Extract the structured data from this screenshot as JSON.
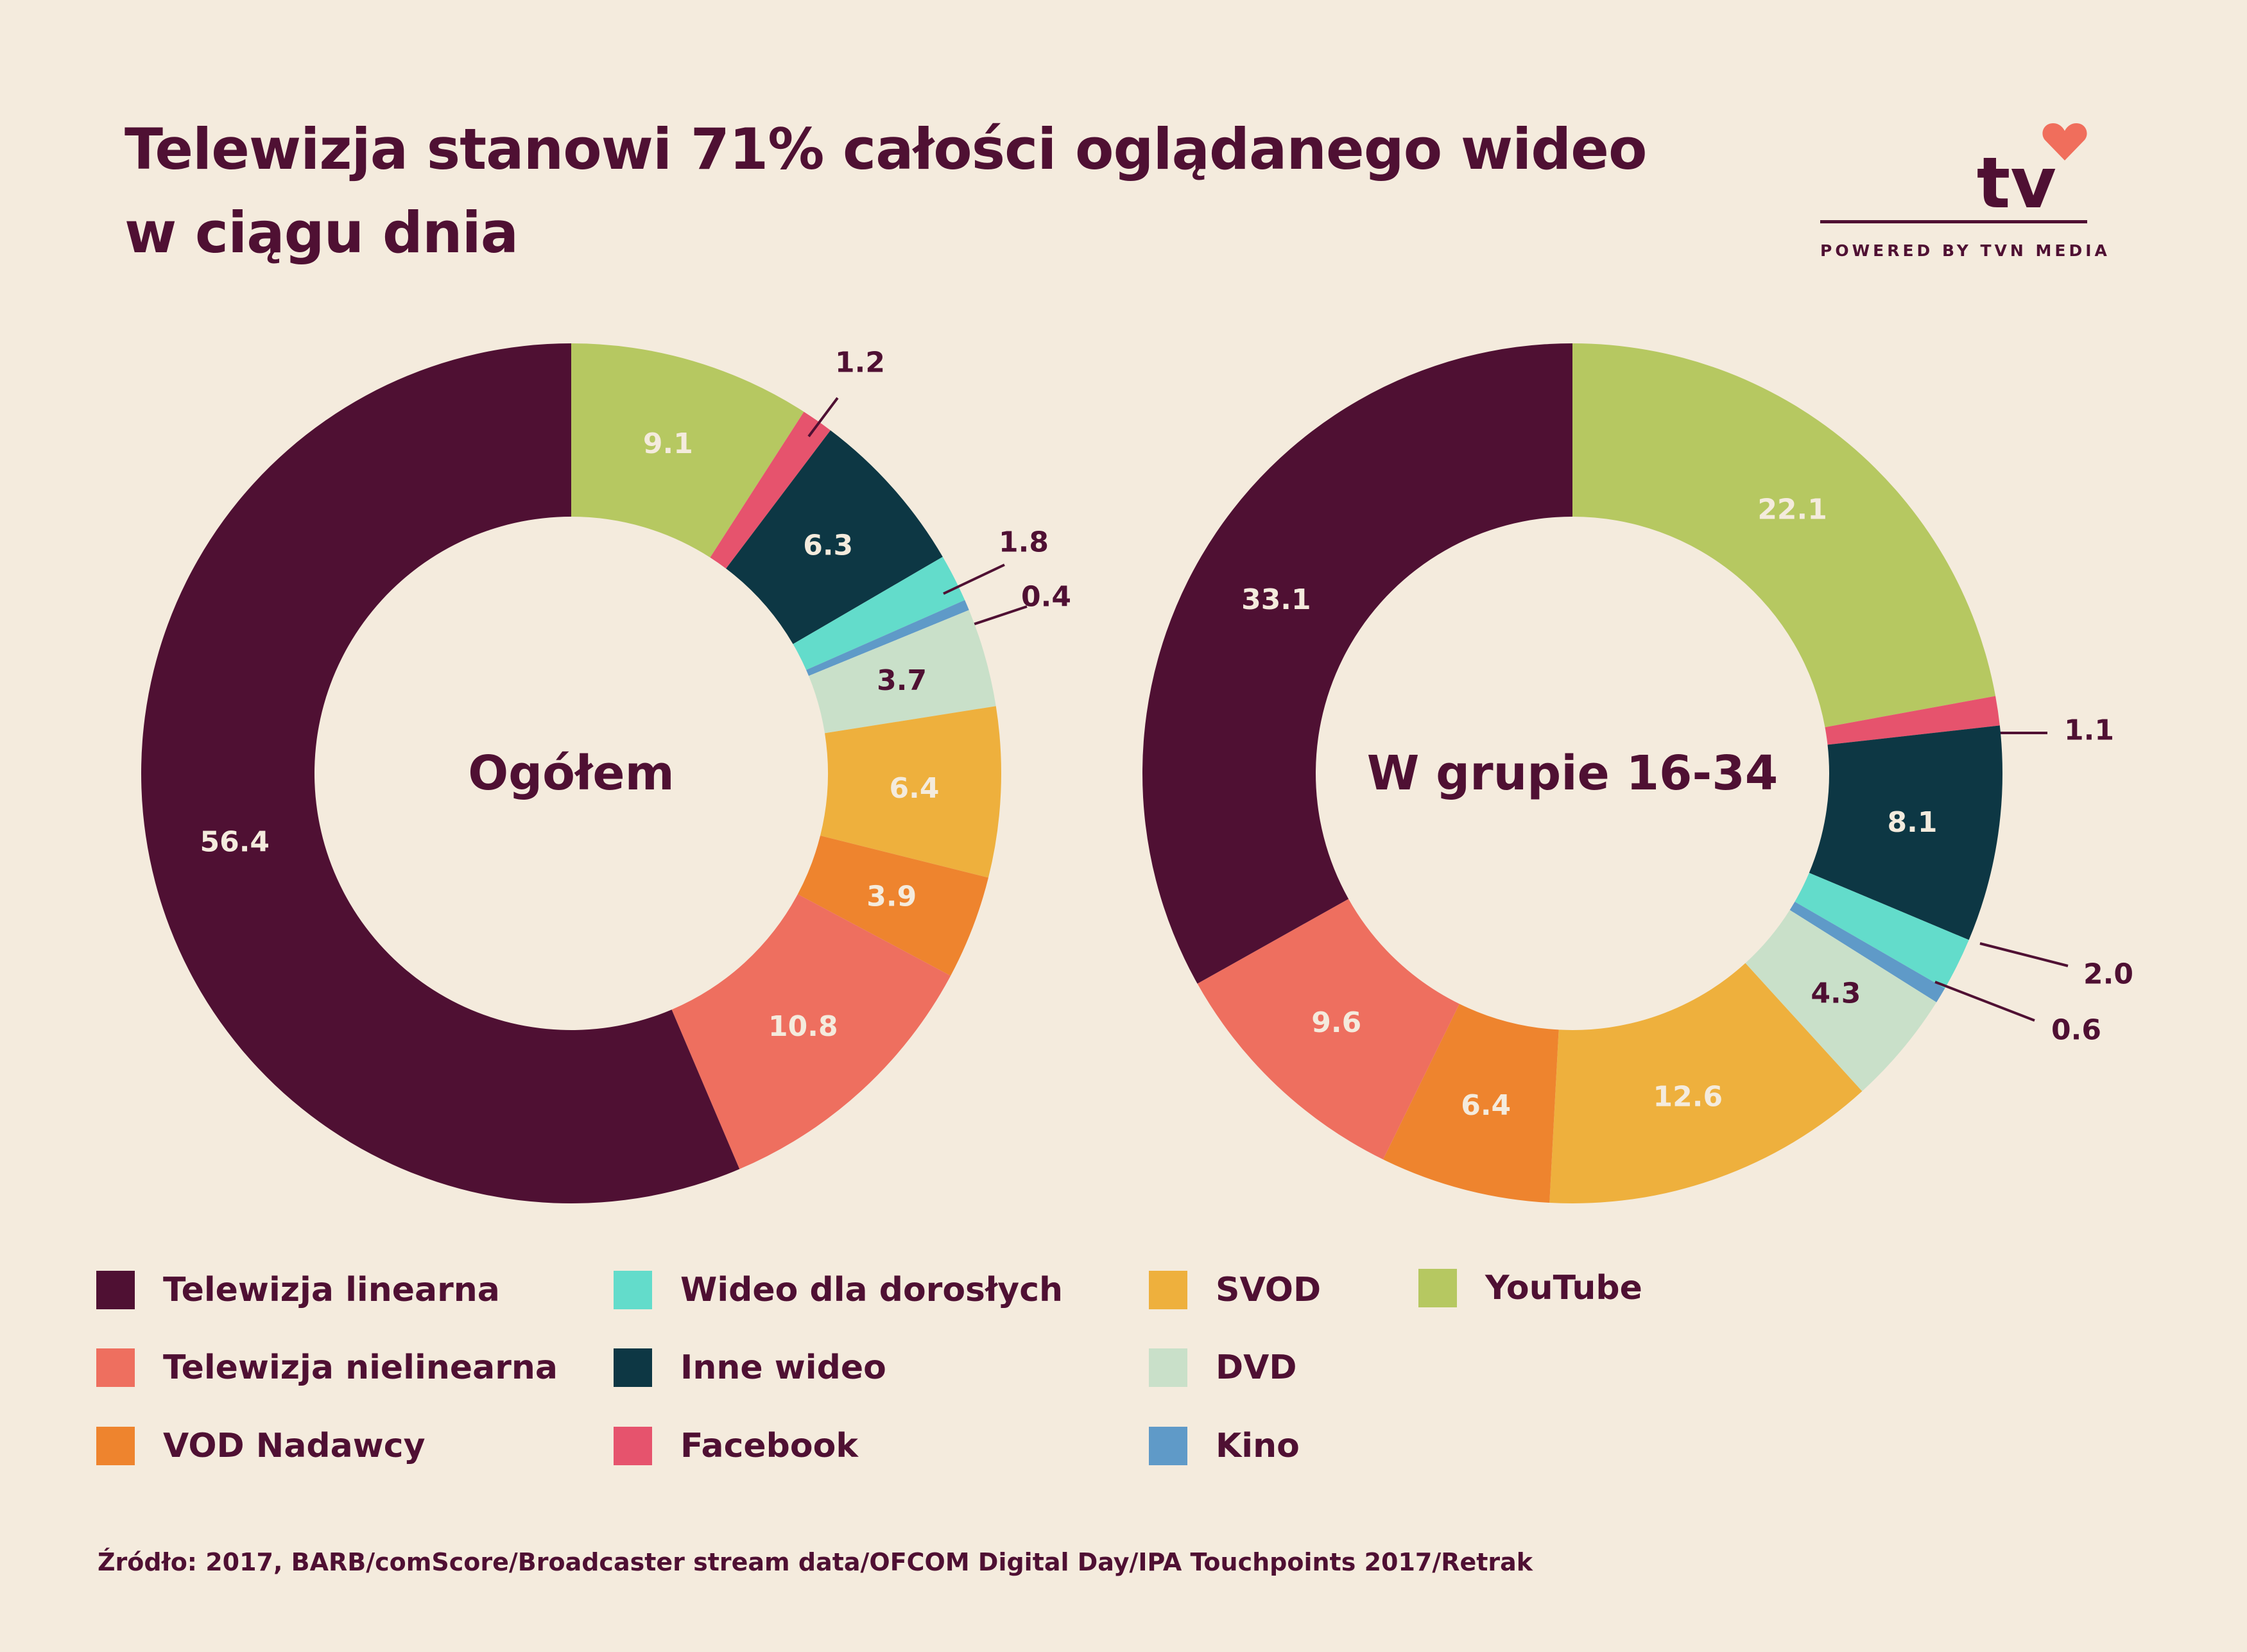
{
  "title_line1": "Telewizja stanowi 71% całości oglądanego wideo",
  "title_line2": "w ciągu dnia",
  "logo": {
    "mark": "tv",
    "tagline": "POWERED BY TVN MEDIA",
    "icon": "heart-icon",
    "accent": "#f06e5c"
  },
  "source": "Źródło: 2017, BARB/comScore/Broadcaster stream data/OFCOM Digital Day/IPA Touchpoints 2017/Retrak",
  "colors": {
    "text": "#4f1033",
    "background": "#f4ebdd"
  },
  "chart_data": [
    {
      "type": "donut",
      "center_label": "Ogółem",
      "slices": [
        {
          "category": "YouTube",
          "value": 9.1,
          "label": "9.1",
          "color": "#b6c861"
        },
        {
          "category": "Facebook",
          "value": 1.2,
          "label": "1.2",
          "color": "#e6536d"
        },
        {
          "category": "Inne wideo",
          "value": 6.3,
          "label": "6.3",
          "color": "#0d3744"
        },
        {
          "category": "Wideo dla dorosłych",
          "value": 1.8,
          "label": "1.8",
          "color": "#63dccb"
        },
        {
          "category": "Kino",
          "value": 0.4,
          "label": "0.4",
          "color": "#5f9ac8"
        },
        {
          "category": "DVD",
          "value": 3.7,
          "label": "3.7",
          "color": "#c9e0c9"
        },
        {
          "category": "SVOD",
          "value": 6.4,
          "label": "6.4",
          "color": "#eeb03d"
        },
        {
          "category": "VOD Nadawcy",
          "value": 3.9,
          "label": "3.9",
          "color": "#ee842e"
        },
        {
          "category": "Telewizja nielinearna",
          "value": 10.8,
          "label": "10.8",
          "color": "#ee6f5f"
        },
        {
          "category": "Telewizja linearna",
          "value": 56.4,
          "label": "56.4",
          "color": "#4f1033"
        }
      ]
    },
    {
      "type": "donut",
      "center_label": "W grupie 16-34",
      "slices": [
        {
          "category": "YouTube",
          "value": 22.1,
          "label": "22.1",
          "color": "#b6c861"
        },
        {
          "category": "Facebook",
          "value": 1.1,
          "label": "1.1",
          "color": "#e6536d"
        },
        {
          "category": "Inne wideo",
          "value": 8.1,
          "label": "8.1",
          "color": "#0d3744"
        },
        {
          "category": "Wideo dla dorosłych",
          "value": 2.0,
          "label": "2.0",
          "color": "#63dccb"
        },
        {
          "category": "Kino",
          "value": 0.6,
          "label": "0.6",
          "color": "#5f9ac8"
        },
        {
          "category": "DVD",
          "value": 4.3,
          "label": "4.3",
          "color": "#c9e0c9"
        },
        {
          "category": "SVOD",
          "value": 12.6,
          "label": "12.6",
          "color": "#eeb03d"
        },
        {
          "category": "VOD Nadawcy",
          "value": 6.4,
          "label": "6.4",
          "color": "#ee842e"
        },
        {
          "category": "Telewizja nielinearna",
          "value": 9.6,
          "label": "9.6",
          "color": "#ee6f5f"
        },
        {
          "category": "Telewizja linearna",
          "value": 33.1,
          "label": "33.1",
          "color": "#4f1033"
        }
      ]
    }
  ],
  "legend": [
    {
      "label": "Telewizja linearna",
      "color": "#4f1033"
    },
    {
      "label": "Telewizja nielinearna",
      "color": "#ee6f5f"
    },
    {
      "label": "VOD Nadawcy",
      "color": "#ee842e"
    },
    {
      "label": "Wideo dla dorosłych",
      "color": "#63dccb"
    },
    {
      "label": "Inne wideo",
      "color": "#0d3744"
    },
    {
      "label": "Facebook",
      "color": "#e6536d"
    },
    {
      "label": "SVOD",
      "color": "#eeb03d"
    },
    {
      "label": "DVD",
      "color": "#c9e0c9"
    },
    {
      "label": "Kino",
      "color": "#5f9ac8"
    },
    {
      "label": "YouTube",
      "color": "#b6c861"
    }
  ]
}
